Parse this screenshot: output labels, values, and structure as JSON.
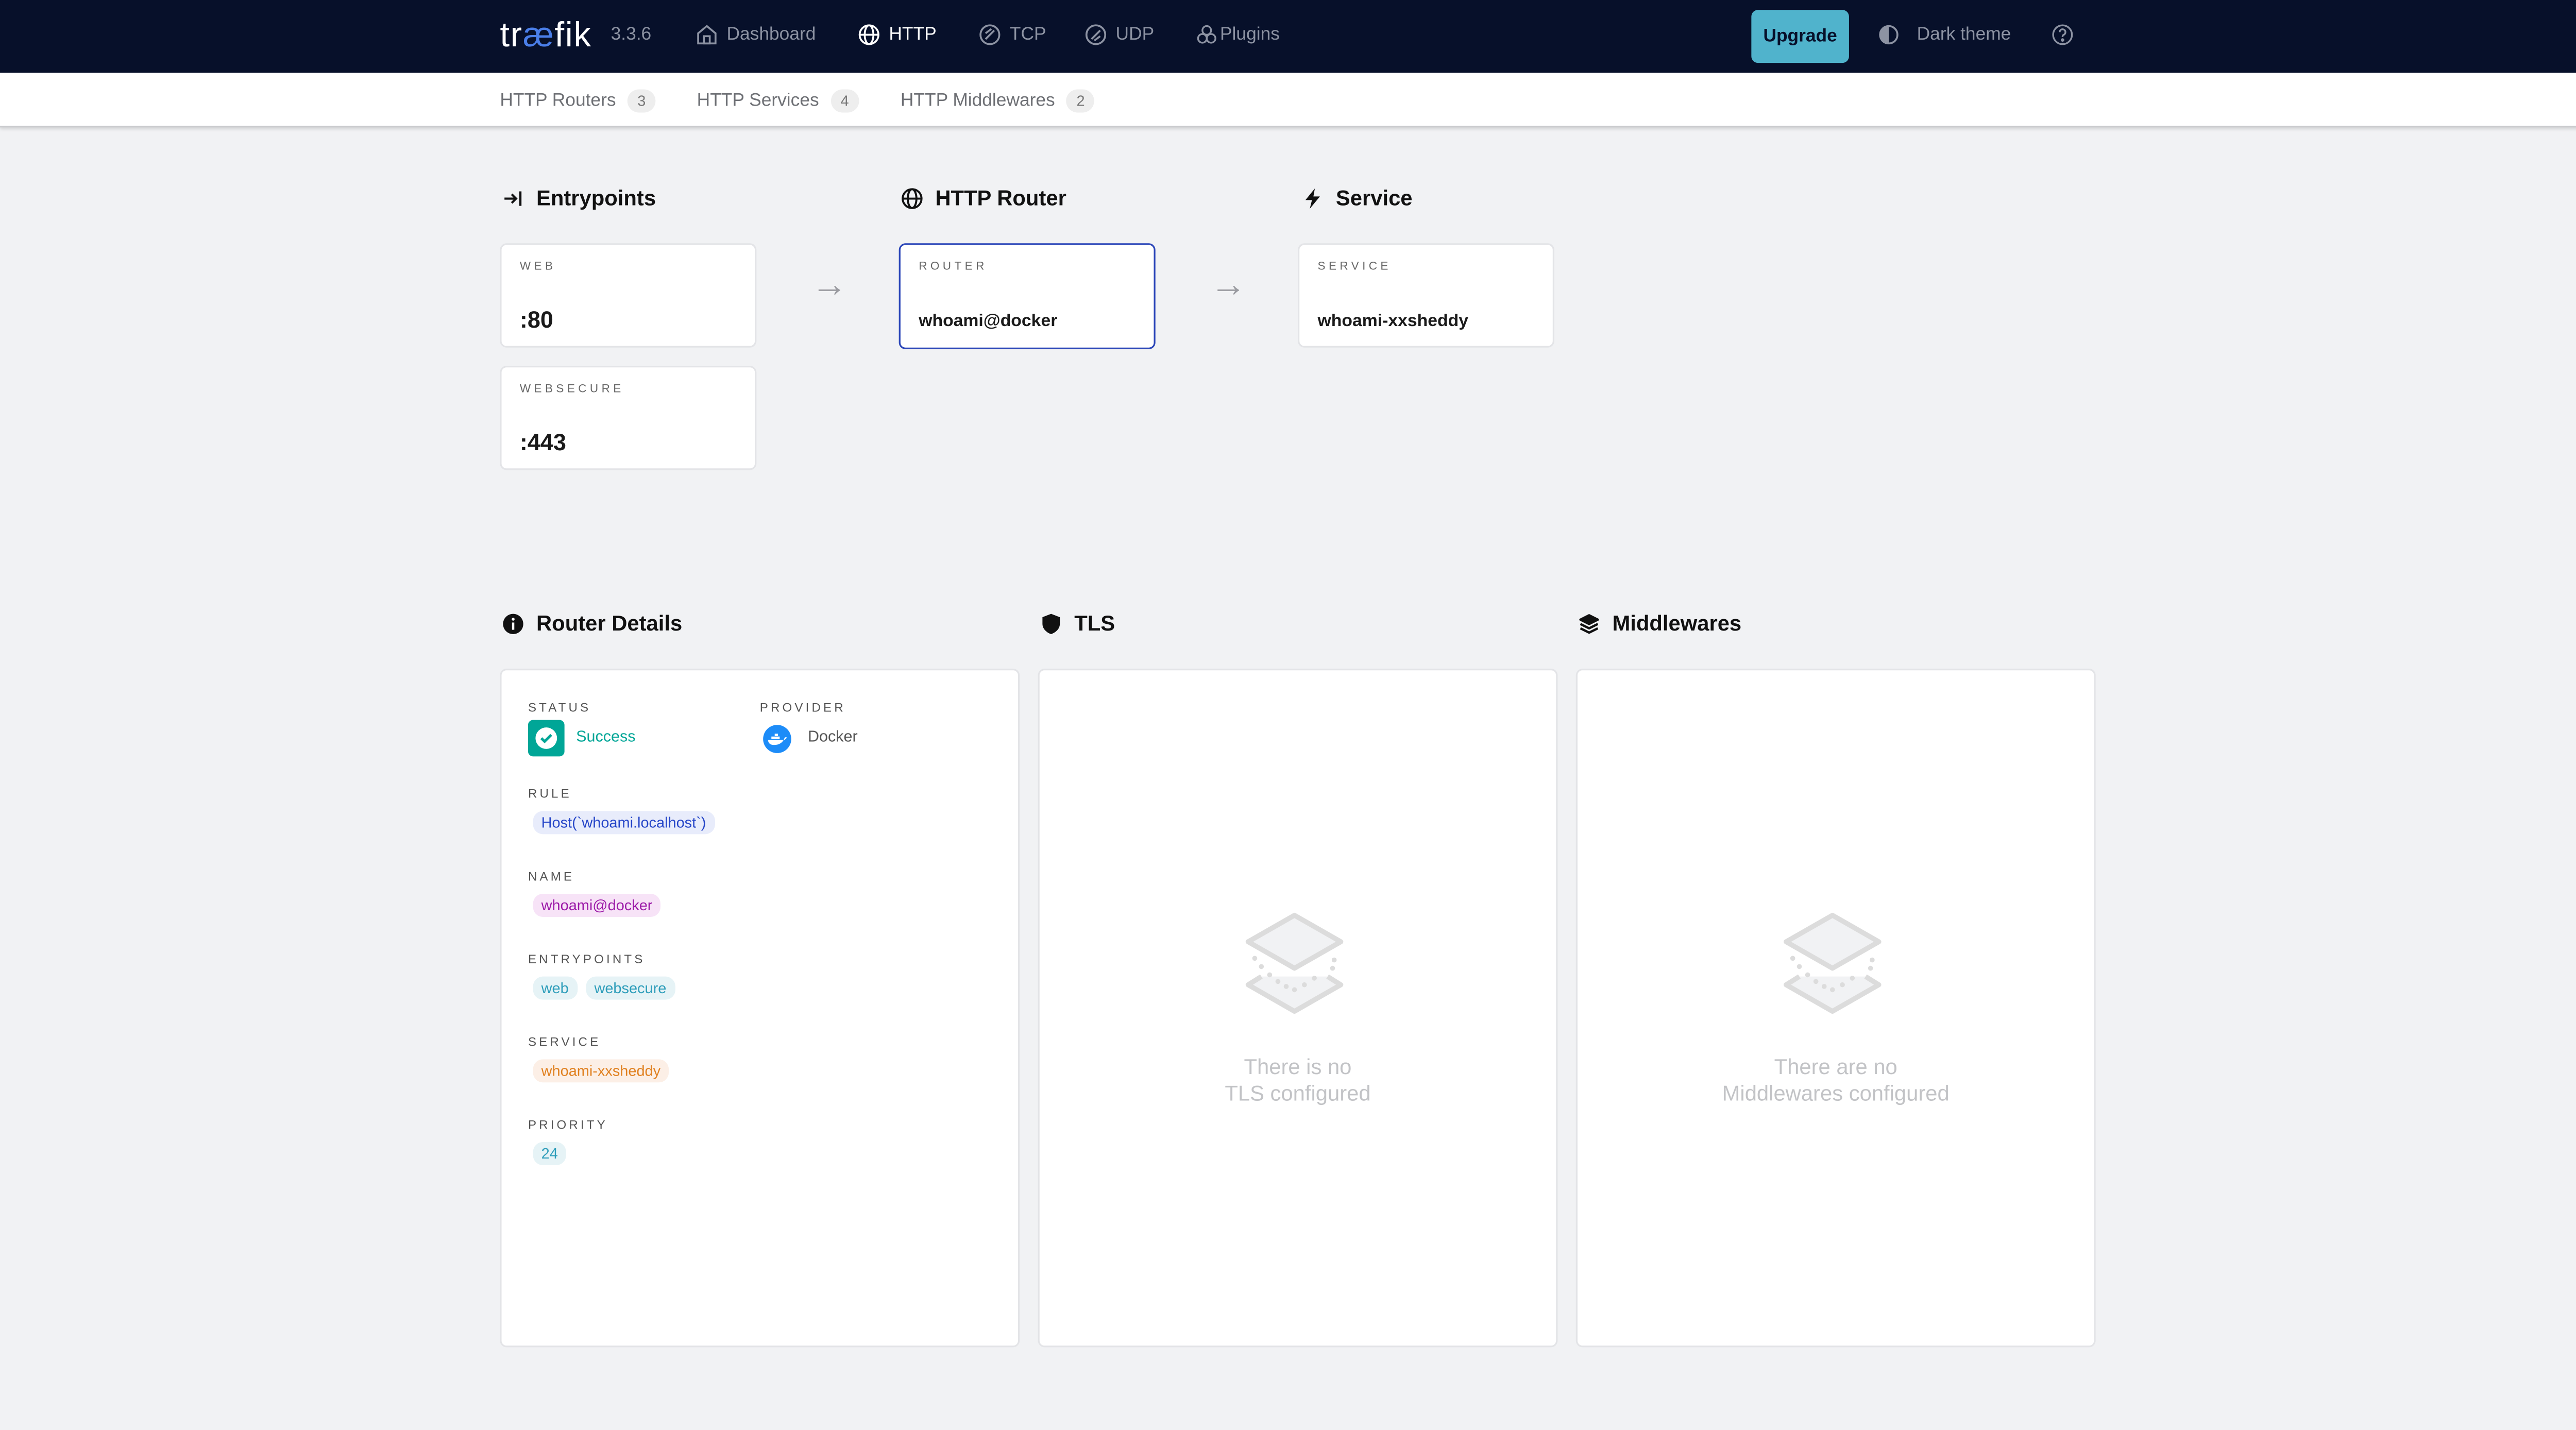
{
  "header": {
    "logo": {
      "pre": "tr",
      "ae": "æ",
      "post": "fik"
    },
    "version": "3.3.6",
    "nav": [
      {
        "label": "Dashboard",
        "icon": "home-icon"
      },
      {
        "label": "HTTP",
        "icon": "globe-icon",
        "active": true
      },
      {
        "label": "TCP",
        "icon": "tcp-icon"
      },
      {
        "label": "UDP",
        "icon": "udp-icon"
      },
      {
        "label": "Plugins",
        "icon": "plugins-icon"
      }
    ],
    "upgrade": "Upgrade",
    "theme": "Dark theme"
  },
  "subnav": [
    {
      "label": "HTTP Routers",
      "count": "3"
    },
    {
      "label": "HTTP Services",
      "count": "4"
    },
    {
      "label": "HTTP Middlewares",
      "count": "2"
    }
  ],
  "flow": {
    "entrypoints": {
      "title": "Entrypoints",
      "items": [
        {
          "label": "WEB",
          "value": ":80"
        },
        {
          "label": "WEBSECURE",
          "value": ":443"
        }
      ]
    },
    "router": {
      "title": "HTTP Router",
      "label": "ROUTER",
      "value": "whoami@docker"
    },
    "service": {
      "title": "Service",
      "label": "SERVICE",
      "value": "whoami-xxsheddy"
    }
  },
  "details": {
    "title": "Router Details",
    "status_label": "STATUS",
    "status": "Success",
    "provider_label": "PROVIDER",
    "provider": "Docker",
    "rule_label": "RULE",
    "rule": "Host(`whoami.localhost`)",
    "name_label": "NAME",
    "name": "whoami@docker",
    "entrypoints_label": "ENTRYPOINTS",
    "entrypoints": [
      "web",
      "websecure"
    ],
    "service_label": "SERVICE",
    "service": "whoami-xxsheddy",
    "priority_label": "PRIORITY",
    "priority": "24"
  },
  "tls": {
    "title": "TLS",
    "empty1": "There is no",
    "empty2": "TLS configured"
  },
  "middlewares": {
    "title": "Middlewares",
    "empty1": "There are no",
    "empty2": "Middlewares configured"
  },
  "colors": {
    "topbar": "#07102a",
    "accent": "#50b3cc",
    "success": "#00a697",
    "router_border": "#2b46b8"
  }
}
